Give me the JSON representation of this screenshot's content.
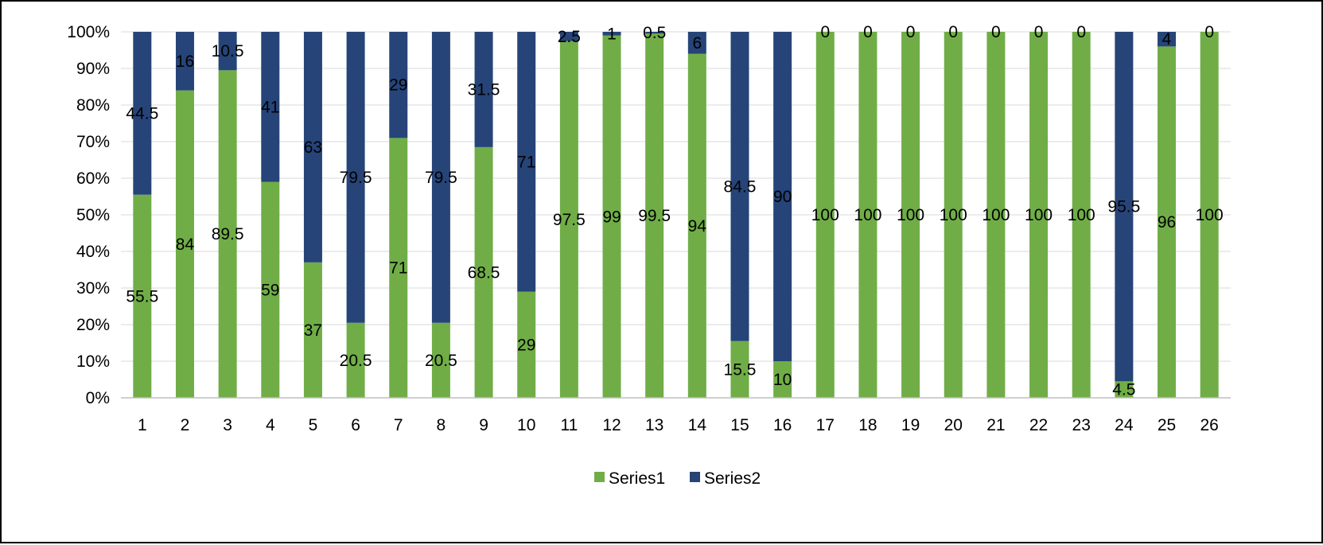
{
  "chart_data": {
    "type": "bar",
    "stacked": "percent",
    "categories": [
      "1",
      "2",
      "3",
      "4",
      "5",
      "6",
      "7",
      "8",
      "9",
      "10",
      "11",
      "12",
      "13",
      "14",
      "15",
      "16",
      "17",
      "18",
      "19",
      "20",
      "21",
      "22",
      "23",
      "24",
      "25",
      "26"
    ],
    "series": [
      {
        "name": "Series1",
        "color": "#70ad47",
        "values": [
          55.5,
          84,
          89.5,
          59,
          37,
          20.5,
          71,
          20.5,
          68.5,
          29,
          97.5,
          99,
          99.5,
          94,
          15.5,
          10,
          100,
          100,
          100,
          100,
          100,
          100,
          100,
          4.5,
          96,
          100
        ]
      },
      {
        "name": "Series2",
        "color": "#264478",
        "values": [
          44.5,
          16,
          10.5,
          41,
          63,
          79.5,
          29,
          79.5,
          31.5,
          71,
          2.5,
          1,
          0.5,
          6,
          84.5,
          90,
          0,
          0,
          0,
          0,
          0,
          0,
          0,
          95.5,
          4,
          0
        ]
      }
    ],
    "yaxis": {
      "ticks": [
        "0%",
        "10%",
        "20%",
        "30%",
        "40%",
        "50%",
        "60%",
        "70%",
        "80%",
        "90%",
        "100%"
      ],
      "ylim": [
        0,
        100
      ]
    },
    "grid": true,
    "legend": "bottom",
    "data_labels": true,
    "title": "",
    "xlabel": "",
    "ylabel": ""
  }
}
